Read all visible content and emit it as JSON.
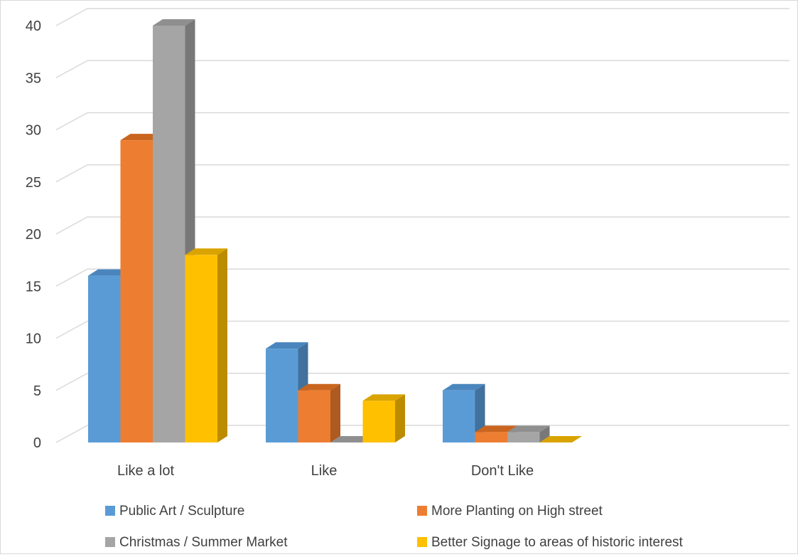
{
  "chart_data": {
    "type": "bar",
    "style": "3d-clustered-column",
    "categories": [
      "Like a lot",
      "Like",
      "Don't Like"
    ],
    "series": [
      {
        "name": "Public Art / Sculpture",
        "values": [
          16,
          9,
          5
        ],
        "color": "#5b9bd5",
        "side_color": "#41719c",
        "top_color": "#4a86bd"
      },
      {
        "name": "More Planting on High street",
        "values": [
          29,
          5,
          1
        ],
        "color": "#ed7d31",
        "side_color": "#ae5a21",
        "top_color": "#c9651f"
      },
      {
        "name": "Christmas / Summer Market",
        "values": [
          40,
          0,
          1
        ],
        "color": "#a5a5a5",
        "side_color": "#787878",
        "top_color": "#8f8f8f"
      },
      {
        "name": "Better Signage to areas of historic interest",
        "values": [
          18,
          4,
          0
        ],
        "color": "#ffc000",
        "side_color": "#bc8c00",
        "top_color": "#d9a300"
      }
    ],
    "ylim": [
      0,
      40
    ],
    "yticks": [
      0,
      5,
      10,
      15,
      20,
      25,
      30,
      35,
      40
    ],
    "grid": true,
    "legend_position": "bottom",
    "title": "",
    "xlabel": "",
    "ylabel": ""
  }
}
